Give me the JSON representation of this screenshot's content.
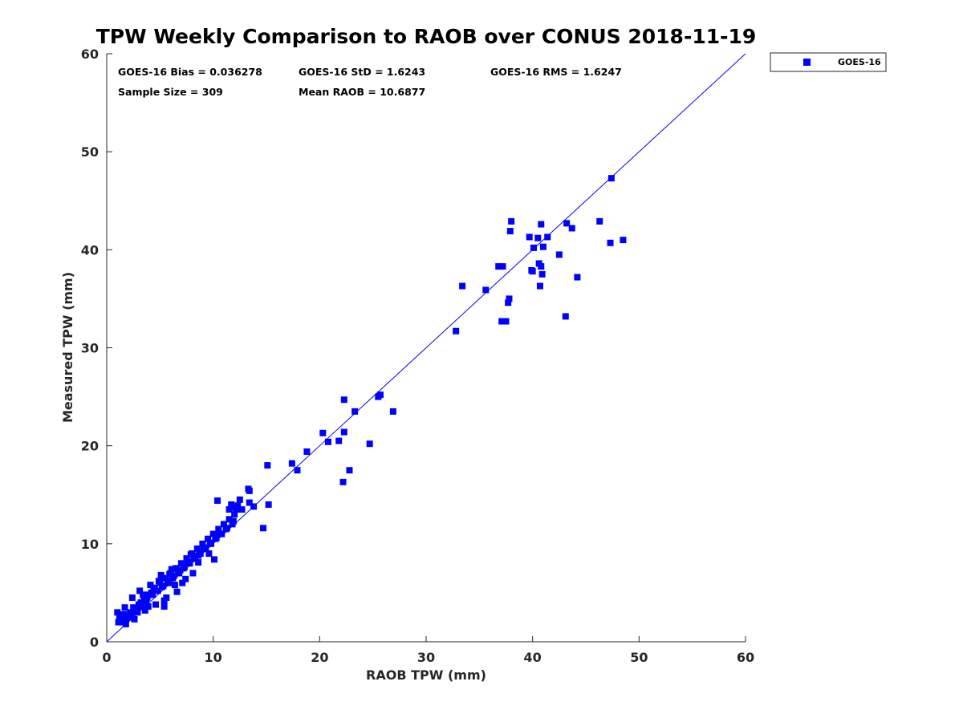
{
  "chart_data": {
    "type": "scatter",
    "title": "TPW Weekly Comparison to RAOB over CONUS 2018-11-19",
    "xlabel": "RAOB TPW (mm)",
    "ylabel": "Measured TPW (mm)",
    "xlim": [
      0,
      60
    ],
    "ylim": [
      0,
      60
    ],
    "xticks": [
      "0",
      "10",
      "20",
      "30",
      "40",
      "50",
      "60"
    ],
    "yticks": [
      "0",
      "10",
      "20",
      "30",
      "40",
      "50",
      "60"
    ],
    "grid": false,
    "legend_position": "outside-top-right",
    "reference_line": {
      "name": "1:1 line",
      "x": [
        0,
        60
      ],
      "y": [
        0,
        60
      ],
      "color": "#0000ff"
    },
    "stats": [
      {
        "name": "bias",
        "text": "GOES-16 Bias = 0.036278"
      },
      {
        "name": "std",
        "text": "GOES-16 StD = 1.6243"
      },
      {
        "name": "rms",
        "text": "GOES-16 RMS = 1.6247"
      },
      {
        "name": "sample-size",
        "text": "Sample Size = 309"
      },
      {
        "name": "mean-raob",
        "text": "Mean RAOB = 10.6877"
      }
    ],
    "series": [
      {
        "name": "GOES-16",
        "color": "#0000ff",
        "marker": "square",
        "x": [
          1.0,
          1.2,
          1.5,
          1.3,
          1.8,
          2.0,
          2.2,
          1.6,
          2.5,
          2.8,
          1.9,
          2.3,
          3.0,
          3.2,
          2.7,
          3.5,
          3.8,
          3.3,
          4.0,
          4.2,
          3.7,
          4.5,
          4.8,
          4.3,
          5.0,
          5.2,
          4.7,
          5.5,
          5.8,
          5.3,
          6.0,
          6.2,
          5.7,
          6.5,
          6.8,
          6.3,
          7.0,
          7.2,
          6.7,
          7.5,
          7.8,
          7.3,
          8.0,
          8.2,
          7.7,
          8.5,
          8.8,
          8.3,
          9.0,
          9.2,
          8.7,
          9.5,
          9.8,
          9.3,
          10.0,
          10.2,
          9.7,
          10.5,
          10.8,
          10.3,
          11.0,
          11.2,
          10.7,
          11.5,
          11.8,
          11.3,
          12.0,
          12.2,
          11.7,
          12.5,
          2.4,
          2.6,
          3.1,
          3.6,
          4.1,
          4.6,
          5.1,
          5.6,
          6.1,
          6.6,
          7.1,
          7.6,
          8.1,
          8.6,
          9.1,
          9.6,
          10.1,
          2.9,
          3.4,
          3.9,
          4.4,
          4.9,
          5.4,
          5.9,
          6.4,
          6.9,
          7.4,
          7.9,
          1.7,
          2.1,
          1.1,
          1.4,
          10.4,
          11.5,
          11.9,
          12.1,
          12.3,
          13.3,
          13.4,
          13.8,
          12.7,
          14.7,
          15.2,
          15.1,
          13.4,
          10.5,
          8.6,
          5.4,
          17.4,
          17.9,
          18.8,
          20.3,
          20.8,
          21.8,
          22.3,
          22.2,
          22.3,
          22.8,
          23.3,
          24.7,
          25.5,
          25.7,
          26.9,
          32.8,
          33.4,
          35.6,
          36.8,
          37.2,
          37.1,
          37.5,
          37.8,
          37.9,
          38.0,
          37.7,
          39.7,
          39.9,
          40.1,
          40.0,
          40.5,
          40.6,
          40.8,
          40.9,
          41.0,
          41.4,
          40.7,
          40.8,
          42.5,
          43.2,
          43.7,
          44.2,
          46.3,
          47.4,
          47.3,
          48.5,
          43.1
        ],
        "y": [
          3.0,
          2.5,
          2.0,
          2.2,
          1.8,
          2.5,
          3.0,
          2.8,
          3.5,
          3.2,
          2.4,
          2.9,
          3.8,
          4.0,
          3.1,
          4.2,
          4.5,
          3.6,
          4.8,
          5.0,
          4.2,
          5.5,
          5.2,
          4.8,
          6.0,
          5.6,
          5.2,
          6.5,
          6.0,
          5.7,
          7.0,
          6.5,
          6.2,
          7.5,
          7.0,
          6.7,
          8.0,
          7.5,
          7.1,
          8.5,
          8.0,
          7.6,
          9.0,
          8.5,
          8.1,
          9.5,
          9.0,
          8.6,
          10.0,
          9.5,
          9.1,
          10.5,
          10.0,
          9.6,
          11.0,
          10.5,
          10.1,
          11.5,
          11.0,
          10.6,
          12.0,
          11.5,
          11.0,
          12.5,
          12.0,
          11.6,
          13.0,
          13.5,
          14.0,
          14.5,
          4.5,
          2.3,
          5.2,
          3.2,
          5.8,
          3.8,
          6.8,
          4.5,
          7.4,
          5.1,
          6.0,
          8.2,
          7.0,
          8.8,
          9.6,
          9.0,
          8.4,
          3.0,
          4.8,
          3.6,
          5.5,
          6.2,
          4.2,
          6.9,
          5.8,
          7.3,
          6.4,
          8.9,
          3.5,
          2.6,
          2.0,
          2.7,
          14.4,
          13.5,
          12.3,
          13.7,
          13.9,
          15.6,
          15.4,
          13.8,
          13.5,
          11.6,
          14.0,
          18.0,
          14.2,
          11.0,
          8.1,
          3.6,
          18.2,
          17.5,
          19.4,
          21.3,
          20.4,
          20.5,
          24.7,
          16.3,
          21.4,
          17.5,
          23.5,
          20.2,
          25.0,
          25.2,
          23.5,
          31.7,
          36.3,
          35.9,
          38.3,
          38.3,
          32.7,
          32.7,
          35.0,
          41.9,
          42.9,
          34.6,
          41.3,
          37.9,
          40.2,
          37.8,
          41.2,
          38.6,
          38.3,
          37.5,
          40.3,
          41.3,
          36.3,
          42.6,
          39.5,
          42.7,
          42.2,
          37.2,
          42.9,
          47.3,
          40.7,
          41.0,
          33.2
        ]
      }
    ]
  }
}
